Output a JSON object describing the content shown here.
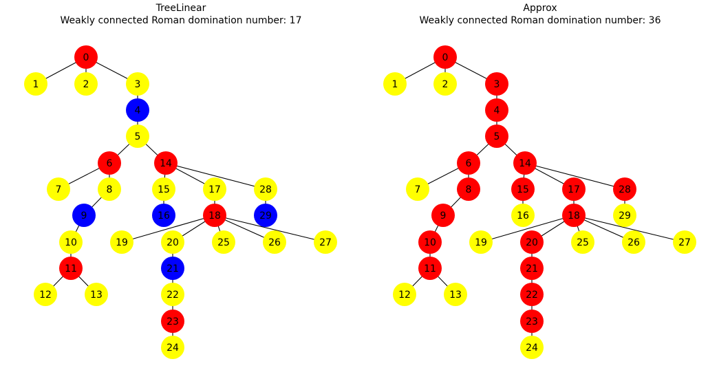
{
  "colors": {
    "red": "#ff0000",
    "yellow": "#ffff00",
    "blue": "#0000ff",
    "edge": "#000000",
    "background": "#ffffff"
  },
  "panels": [
    {
      "title": "TreeLinear",
      "subtitle": "Weakly connected Roman domination number: 17",
      "node_colors": [
        "red",
        "yellow",
        "yellow",
        "yellow",
        "blue",
        "yellow",
        "red",
        "yellow",
        "yellow",
        "blue",
        "yellow",
        "red",
        "yellow",
        "yellow",
        "red",
        "yellow",
        "blue",
        "yellow",
        "red",
        "yellow",
        "yellow",
        "blue",
        "yellow",
        "red",
        "yellow",
        "yellow",
        "yellow",
        "yellow",
        "yellow",
        "blue"
      ]
    },
    {
      "title": "Approx",
      "subtitle": "Weakly connected Roman domination number: 36",
      "node_colors": [
        "red",
        "yellow",
        "yellow",
        "red",
        "red",
        "red",
        "red",
        "yellow",
        "red",
        "red",
        "red",
        "red",
        "yellow",
        "yellow",
        "red",
        "red",
        "yellow",
        "red",
        "red",
        "yellow",
        "red",
        "red",
        "red",
        "red",
        "yellow",
        "yellow",
        "yellow",
        "yellow",
        "red",
        "yellow"
      ]
    }
  ],
  "graph": {
    "nodes": [
      "0",
      "1",
      "2",
      "3",
      "4",
      "5",
      "6",
      "7",
      "8",
      "9",
      "10",
      "11",
      "12",
      "13",
      "14",
      "15",
      "16",
      "17",
      "18",
      "19",
      "20",
      "21",
      "22",
      "23",
      "24",
      "25",
      "26",
      "27",
      "28",
      "29"
    ],
    "edges": [
      [
        0,
        1
      ],
      [
        0,
        2
      ],
      [
        0,
        3
      ],
      [
        3,
        4
      ],
      [
        4,
        5
      ],
      [
        5,
        6
      ],
      [
        5,
        14
      ],
      [
        6,
        7
      ],
      [
        6,
        8
      ],
      [
        8,
        9
      ],
      [
        9,
        10
      ],
      [
        10,
        11
      ],
      [
        11,
        12
      ],
      [
        11,
        13
      ],
      [
        14,
        15
      ],
      [
        14,
        17
      ],
      [
        14,
        28
      ],
      [
        15,
        16
      ],
      [
        17,
        18
      ],
      [
        18,
        19
      ],
      [
        18,
        20
      ],
      [
        18,
        25
      ],
      [
        18,
        26
      ],
      [
        18,
        27
      ],
      [
        20,
        21
      ],
      [
        21,
        22
      ],
      [
        22,
        23
      ],
      [
        23,
        24
      ],
      [
        28,
        29
      ]
    ]
  }
}
